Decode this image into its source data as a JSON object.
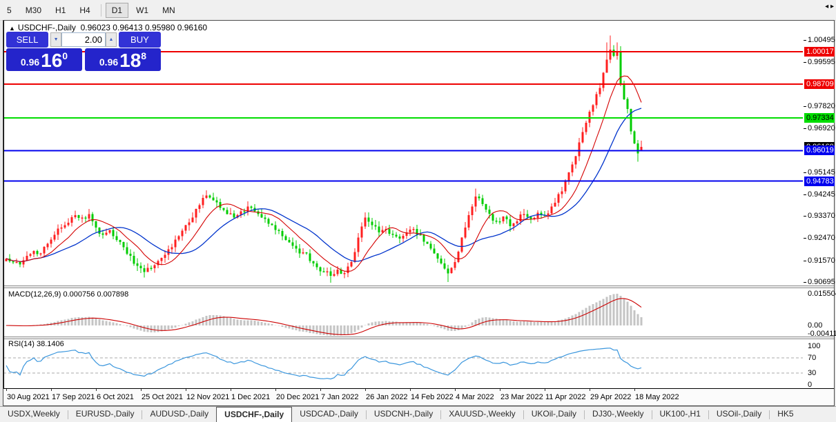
{
  "toolbar": {
    "timeframes": [
      {
        "label": "5",
        "active": false
      },
      {
        "label": "M30",
        "active": false
      },
      {
        "label": "H1",
        "active": false
      },
      {
        "label": "H4",
        "active": false
      },
      {
        "label": "D1",
        "active": true
      },
      {
        "label": "W1",
        "active": false
      },
      {
        "label": "MN",
        "active": false
      }
    ]
  },
  "chart_header": {
    "symbol": "USDCHF-,Daily",
    "ohlc": "0.96023 0.96413 0.95980 0.96160"
  },
  "trade_widget": {
    "sell_label": "SELL",
    "buy_label": "BUY",
    "volume": "2.00",
    "sell_price": {
      "base": "0.96",
      "big": "16",
      "sup": "0"
    },
    "buy_price": {
      "base": "0.96",
      "big": "18",
      "sup": "8"
    }
  },
  "indicators": {
    "macd_label": "MACD(12,26,9) 0.000756 0.007898",
    "rsi_label": "RSI(14) 38.1406"
  },
  "tabs": [
    {
      "label": "USDX,Weekly",
      "active": false
    },
    {
      "label": "EURUSD-,Daily",
      "active": false
    },
    {
      "label": "AUDUSD-,Daily",
      "active": false
    },
    {
      "label": "USDCHF-,Daily",
      "active": true
    },
    {
      "label": "USDCAD-,Daily",
      "active": false
    },
    {
      "label": "USDCNH-,Daily",
      "active": false
    },
    {
      "label": "XAUUSD-,Weekly",
      "active": false
    },
    {
      "label": "UKOil-,Daily",
      "active": false
    },
    {
      "label": "DJ30-,Weekly",
      "active": false
    },
    {
      "label": "UK100-,H1",
      "active": false
    },
    {
      "label": "USOil-,Daily",
      "active": false
    },
    {
      "label": "HK5",
      "active": false
    }
  ],
  "tab_scroll_arrows": "◂ ▸",
  "chart_data": {
    "type": "candlestick",
    "symbol": "USDCHF",
    "timeframe": "Daily",
    "title": "USDCHF-,Daily 0.96023 0.96413 0.95980 0.96160",
    "n_candles": 185,
    "ylim": [
      0.9061,
      1.0122
    ],
    "colors": {
      "up": "#ff1f1f",
      "down": "#00cc00",
      "background": "#ffffff"
    },
    "price_tick_labels": [
      "1.00495",
      "0.99595",
      "0.97820",
      "0.96920",
      "0.95145",
      "0.94245",
      "0.93370",
      "0.92470",
      "0.91570",
      "0.90695"
    ],
    "price_tick_values": [
      1.00495,
      0.99595,
      0.9782,
      0.9692,
      0.95145,
      0.94245,
      0.9337,
      0.9247,
      0.9157,
      0.90695
    ],
    "current_price_box": {
      "label": "0.96160",
      "value": 0.9616,
      "bg": "#000000",
      "fg": "#ffffff"
    },
    "hlines": [
      {
        "label": "1.00017",
        "value": 1.00017,
        "color": "#ee0000",
        "text_color": "#ffffff"
      },
      {
        "label": "0.98709",
        "value": 0.98709,
        "color": "#ee0000",
        "text_color": "#ffffff"
      },
      {
        "label": "0.97334",
        "value": 0.97334,
        "color": "#00dd00",
        "text_color": "#000000"
      },
      {
        "label": "0.96019",
        "value": 0.96019,
        "color": "#0000ee",
        "text_color": "#ffffff"
      },
      {
        "label": "0.94783",
        "value": 0.94783,
        "color": "#0000ee",
        "text_color": "#ffffff"
      }
    ],
    "x_tick_labels": [
      "30 Aug 2021",
      "17 Sep 2021",
      "6 Oct 2021",
      "25 Oct 2021",
      "12 Nov 2021",
      "1 Dec 2021",
      "20 Dec 2021",
      "7 Jan 2022",
      "26 Jan 2022",
      "14 Feb 2022",
      "4 Mar 2022",
      "23 Mar 2022",
      "11 Apr 2022",
      "29 Apr 2022",
      "18 May 2022"
    ],
    "candles_per_tick": 13,
    "last_candle_ohlc": [
      0.96023,
      0.96413,
      0.9598,
      0.9616
    ],
    "close_anchors": [
      [
        0,
        0.9165
      ],
      [
        2,
        0.915
      ],
      [
        4,
        0.914
      ],
      [
        6,
        0.9175
      ],
      [
        8,
        0.9195
      ],
      [
        10,
        0.9185
      ],
      [
        12,
        0.9225
      ],
      [
        14,
        0.926
      ],
      [
        16,
        0.929
      ],
      [
        18,
        0.931
      ],
      [
        20,
        0.934
      ],
      [
        22,
        0.933
      ],
      [
        24,
        0.9345
      ],
      [
        26,
        0.929
      ],
      [
        28,
        0.926
      ],
      [
        30,
        0.928
      ],
      [
        32,
        0.924
      ],
      [
        34,
        0.921
      ],
      [
        36,
        0.9175
      ],
      [
        38,
        0.9135
      ],
      [
        40,
        0.911
      ],
      [
        42,
        0.9125
      ],
      [
        44,
        0.9155
      ],
      [
        46,
        0.918
      ],
      [
        48,
        0.921
      ],
      [
        50,
        0.9255
      ],
      [
        52,
        0.93
      ],
      [
        54,
        0.933
      ],
      [
        56,
        0.938
      ],
      [
        58,
        0.942
      ],
      [
        60,
        0.94
      ],
      [
        62,
        0.937
      ],
      [
        64,
        0.9345
      ],
      [
        66,
        0.933
      ],
      [
        68,
        0.9355
      ],
      [
        70,
        0.9375
      ],
      [
        72,
        0.9355
      ],
      [
        74,
        0.933
      ],
      [
        76,
        0.9305
      ],
      [
        78,
        0.928
      ],
      [
        80,
        0.9255
      ],
      [
        82,
        0.923
      ],
      [
        84,
        0.9205
      ],
      [
        86,
        0.919
      ],
      [
        88,
        0.9155
      ],
      [
        90,
        0.913
      ],
      [
        92,
        0.911
      ],
      [
        94,
        0.9095
      ],
      [
        96,
        0.912
      ],
      [
        98,
        0.9105
      ],
      [
        100,
        0.915
      ],
      [
        102,
        0.925
      ],
      [
        104,
        0.933
      ],
      [
        106,
        0.93
      ],
      [
        108,
        0.927
      ],
      [
        110,
        0.9285
      ],
      [
        112,
        0.926
      ],
      [
        114,
        0.9245
      ],
      [
        116,
        0.927
      ],
      [
        118,
        0.9285
      ],
      [
        120,
        0.926
      ],
      [
        122,
        0.9225
      ],
      [
        124,
        0.9185
      ],
      [
        126,
        0.9145
      ],
      [
        128,
        0.9105
      ],
      [
        130,
        0.915
      ],
      [
        132,
        0.925
      ],
      [
        134,
        0.934
      ],
      [
        136,
        0.9415
      ],
      [
        138,
        0.9385
      ],
      [
        140,
        0.9345
      ],
      [
        142,
        0.9315
      ],
      [
        144,
        0.9335
      ],
      [
        146,
        0.9295
      ],
      [
        148,
        0.9315
      ],
      [
        150,
        0.9345
      ],
      [
        152,
        0.9325
      ],
      [
        154,
        0.935
      ],
      [
        156,
        0.934
      ],
      [
        158,
        0.9375
      ],
      [
        160,
        0.9425
      ],
      [
        162,
        0.9475
      ],
      [
        164,
        0.9545
      ],
      [
        166,
        0.9635
      ],
      [
        168,
        0.9715
      ],
      [
        170,
        0.9785
      ],
      [
        172,
        0.9855
      ],
      [
        174,
        0.997
      ],
      [
        175,
        1.001
      ],
      [
        176,
        0.9985
      ],
      [
        177,
        1.0005
      ],
      [
        178,
        0.987
      ],
      [
        179,
        0.981
      ],
      [
        180,
        0.977
      ],
      [
        181,
        0.968
      ],
      [
        182,
        0.963
      ],
      [
        183,
        0.959
      ],
      [
        184,
        0.9616
      ]
    ],
    "wick_overrides": {
      "highs": [
        [
          136,
          0.9448
        ],
        [
          174,
          1.004
        ],
        [
          175,
          1.0068
        ],
        [
          177,
          1.004
        ]
      ],
      "lows": [
        [
          40,
          0.9088
        ],
        [
          94,
          0.9066
        ],
        [
          128,
          0.907
        ],
        [
          183,
          0.9556
        ]
      ]
    },
    "ma": {
      "fast_period": 10,
      "slow_period": 21,
      "fast_color": "#d40000",
      "slow_color": "#0033cc"
    },
    "macd": {
      "params": [
        12,
        26,
        9
      ],
      "value": 0.000756,
      "signal_value": 0.007898,
      "axis_labels": [
        "0.015504",
        "0.00",
        "-0.004118"
      ],
      "axis_values": [
        0.015504,
        0,
        -0.004118
      ],
      "ylim": [
        -0.0048,
        0.0175
      ],
      "hist_color": "#c4c4c4",
      "signal_color": "#cc0000"
    },
    "rsi": {
      "period": 14,
      "value": 38.1406,
      "levels": [
        70,
        30
      ],
      "axis_labels": [
        "100",
        "70",
        "30",
        "0"
      ],
      "axis_values": [
        100,
        70,
        30,
        0
      ],
      "color": "#3a96dd"
    }
  }
}
